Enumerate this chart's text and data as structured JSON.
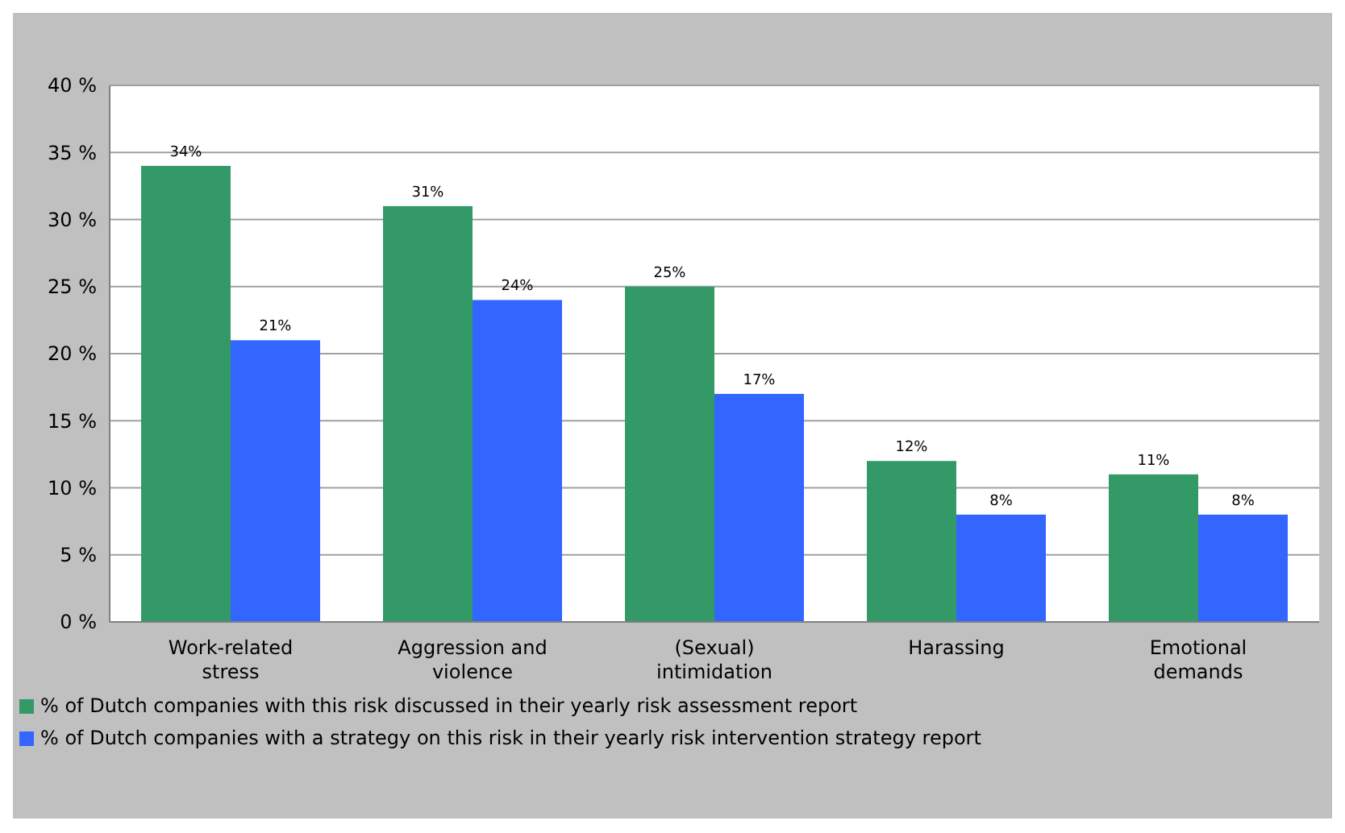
{
  "chart_data": {
    "type": "bar",
    "categories": [
      "Work-related stress",
      "Aggression and violence",
      "(Sexual) intimidation",
      "Harassing",
      "Emotional demands"
    ],
    "series": [
      {
        "name": "% of  Dutch companies with this risk discussed in their yearly risk assessment report",
        "color": "#339966",
        "values": [
          34,
          31,
          25,
          12,
          11
        ],
        "value_labels": [
          "34%",
          "31%",
          "25%",
          "12%",
          "11%"
        ]
      },
      {
        "name": "% of Dutch companies with a strategy on this risk in their yearly risk intervention strategy report",
        "color": "#3366ff",
        "values": [
          21,
          24,
          17,
          8,
          8
        ],
        "value_labels": [
          "21%",
          "24%",
          "17%",
          "8%",
          "8%"
        ]
      }
    ],
    "ylim": [
      0,
      40
    ],
    "yticks": [
      {
        "value": 0,
        "label": "0 %"
      },
      {
        "value": 5,
        "label": "5 %"
      },
      {
        "value": 10,
        "label": "10 %"
      },
      {
        "value": 15,
        "label": "15 %"
      },
      {
        "value": 20,
        "label": "20 %"
      },
      {
        "value": 25,
        "label": "25 %"
      },
      {
        "value": 30,
        "label": "30 %"
      },
      {
        "value": 35,
        "label": "35 %"
      },
      {
        "value": 40,
        "label": "40 %"
      }
    ],
    "grid": "y",
    "legend": "bottom left"
  }
}
